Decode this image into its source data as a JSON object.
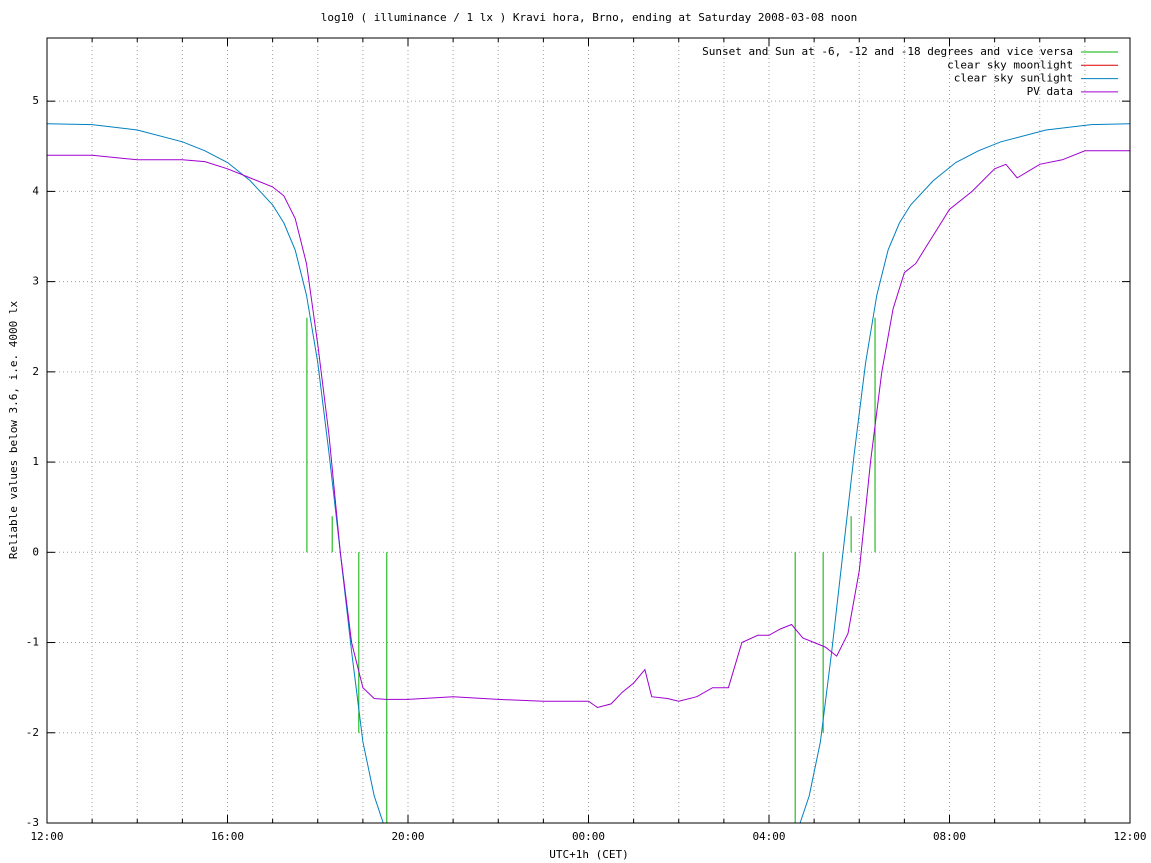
{
  "chart_data": {
    "type": "line",
    "title": "log10 ( illuminance / 1 lx ) Kravi hora, Brno, ending at Saturday 2008-03-08 noon",
    "xlabel": "UTC+1h (CET)",
    "ylabel": "Reliable values below 3.6, i.e. 4000 lx",
    "xlim": [
      0,
      24
    ],
    "ylim": [
      -3,
      5.7
    ],
    "xticks": [
      {
        "value": 0,
        "label": "12:00"
      },
      {
        "value": 4,
        "label": "16:00"
      },
      {
        "value": 8,
        "label": "20:00"
      },
      {
        "value": 12,
        "label": "00:00"
      },
      {
        "value": 16,
        "label": "04:00"
      },
      {
        "value": 20,
        "label": "08:00"
      },
      {
        "value": 24,
        "label": "12:00"
      }
    ],
    "xminorticks": [
      1,
      2,
      3,
      5,
      6,
      7,
      9,
      10,
      11,
      13,
      14,
      15,
      17,
      18,
      19,
      21,
      22,
      23
    ],
    "yticks": [
      -3,
      -2,
      -1,
      0,
      1,
      2,
      3,
      4,
      5
    ],
    "grid": true,
    "legend": "top-right",
    "series": [
      {
        "name": "Sunset and Sun at -6, -12 and -18 degrees and vice versa",
        "color": "#00b000",
        "style": "impulses",
        "x": [
          5.76,
          6.32,
          6.91,
          7.53,
          16.58,
          17.2,
          17.82,
          18.35
        ],
        "values": [
          2.6,
          0.4,
          -2,
          -3,
          -3,
          -2,
          0.4,
          2.6
        ]
      },
      {
        "name": "clear sky moonlight",
        "color": "#e00000",
        "style": "line",
        "x": [],
        "values": []
      },
      {
        "name": "clear sky sunlight",
        "color": "#0080c0",
        "style": "line",
        "x": [
          0,
          1,
          2,
          3,
          3.5,
          4,
          4.5,
          5,
          5.25,
          5.5,
          5.75,
          6,
          6.25,
          6.5,
          6.75,
          7,
          7.25,
          7.45,
          12,
          16.69,
          16.89,
          17.14,
          17.39,
          17.64,
          17.89,
          18.14,
          18.39,
          18.64,
          18.89,
          19.14,
          19.64,
          20.14,
          20.64,
          21.14,
          22.14,
          23.14,
          24
        ],
        "values": [
          4.75,
          4.74,
          4.68,
          4.55,
          4.45,
          4.32,
          4.12,
          3.85,
          3.65,
          3.35,
          2.85,
          2.1,
          1.1,
          0.0,
          -1.1,
          -2.1,
          -2.7,
          -3,
          null,
          -3,
          -2.7,
          -2.1,
          -1.1,
          0.0,
          1.1,
          2.1,
          2.85,
          3.35,
          3.65,
          3.85,
          4.12,
          4.32,
          4.45,
          4.55,
          4.68,
          4.74,
          4.75
        ]
      },
      {
        "name": "PV data",
        "color": "#a000d0",
        "style": "line",
        "x": [
          0,
          1,
          2,
          3,
          3.5,
          4,
          4.5,
          5,
          5.25,
          5.5,
          5.75,
          6,
          6.25,
          6.5,
          6.75,
          7,
          7.25,
          7.5,
          8,
          9,
          10,
          11,
          12,
          12.2,
          12.5,
          12.75,
          13,
          13.25,
          13.4,
          13.75,
          14,
          14.4,
          14.75,
          15.1,
          15.4,
          15.75,
          16,
          16.25,
          16.5,
          16.75,
          17,
          17.25,
          17.5,
          17.75,
          18,
          18.25,
          18.5,
          18.75,
          19,
          19.25,
          19.5,
          19.75,
          20,
          20.5,
          21,
          21.25,
          21.5,
          22,
          22.5,
          23,
          23.5,
          24
        ],
        "values": [
          4.4,
          4.4,
          4.35,
          4.35,
          4.33,
          4.25,
          4.15,
          4.05,
          3.95,
          3.7,
          3.2,
          2.3,
          1.3,
          0.0,
          -1.0,
          -1.5,
          -1.62,
          -1.63,
          -1.63,
          -1.6,
          -1.63,
          -1.65,
          -1.65,
          -1.72,
          -1.68,
          -1.55,
          -1.45,
          -1.3,
          -1.6,
          -1.62,
          -1.65,
          -1.6,
          -1.5,
          -1.5,
          -1.0,
          -0.92,
          -0.92,
          -0.85,
          -0.8,
          -0.95,
          -1.0,
          -1.05,
          -1.15,
          -0.9,
          -0.2,
          1.0,
          2.0,
          2.7,
          3.1,
          3.2,
          3.4,
          3.6,
          3.8,
          4.0,
          4.25,
          4.3,
          4.15,
          4.3,
          4.35,
          4.45,
          4.45,
          4.45
        ]
      }
    ]
  }
}
